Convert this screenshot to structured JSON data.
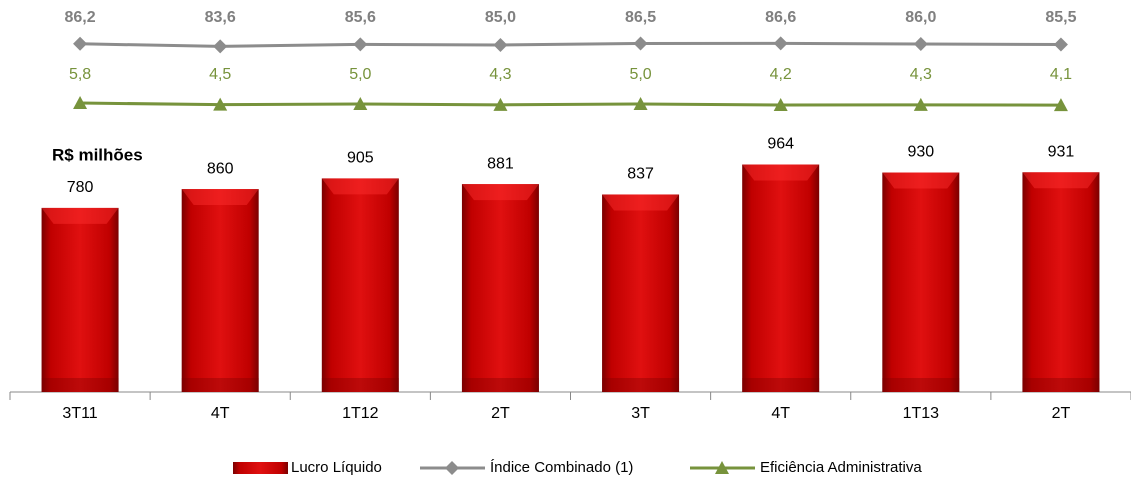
{
  "chart_data": {
    "type": "bar",
    "title": "R$ milhões",
    "categories": [
      "3T11",
      "4T",
      "1T12",
      "2T",
      "3T",
      "4T",
      "1T13",
      "2T"
    ],
    "ylim": [
      0,
      1000
    ],
    "y2lim": [
      60,
      110
    ],
    "y3lim": [
      0,
      50
    ],
    "legend": "bottom",
    "series": [
      {
        "name": "Lucro Líquido",
        "type": "bar",
        "color": "#c00000",
        "values": [
          780,
          860,
          905,
          881,
          837,
          964,
          930,
          931
        ]
      },
      {
        "name": "Índice Combinado (1)",
        "type": "line",
        "axis": "y2",
        "color": "#8c8c8c",
        "marker": "diamond",
        "values": [
          86.2,
          83.6,
          85.6,
          85.0,
          86.5,
          86.6,
          86.0,
          85.5
        ],
        "value_labels": [
          "86,2",
          "83,6",
          "85,6",
          "85,0",
          "86,5",
          "86,6",
          "86,0",
          "85,5"
        ]
      },
      {
        "name": "Eficiência Administrativa",
        "type": "line",
        "axis": "y3",
        "color": "#77933c",
        "marker": "triangle",
        "values": [
          5.8,
          4.5,
          5.0,
          4.3,
          5.0,
          4.2,
          4.3,
          4.1
        ],
        "value_labels": [
          "5,8",
          "4,5",
          "5,0",
          "4,3",
          "5,0",
          "4,2",
          "4,3",
          "4,1"
        ]
      }
    ]
  }
}
